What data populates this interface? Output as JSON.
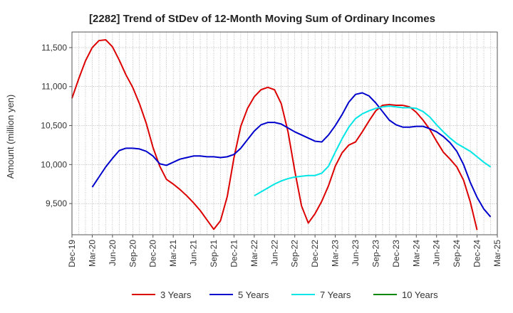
{
  "chart_data": {
    "type": "line",
    "title": "[2282]  Trend of StDev of 12-Month Moving Sum of Ordinary Incomes",
    "xlabel": "",
    "ylabel": "Amount (million yen)",
    "ylim": [
      9100,
      11700
    ],
    "yticks": [
      9500,
      10000,
      10500,
      11000,
      11500
    ],
    "ytick_labels": [
      "9,500",
      "10,000",
      "10,500",
      "11,000",
      "11,500"
    ],
    "x_start": "Dec-19",
    "x_end": "Mar-25",
    "x_ticks": [
      "Dec-19",
      "Mar-20",
      "Jun-20",
      "Sep-20",
      "Dec-20",
      "Mar-21",
      "Jun-21",
      "Sep-21",
      "Dec-21",
      "Mar-22",
      "Jun-22",
      "Sep-22",
      "Dec-22",
      "Mar-23",
      "Jun-23",
      "Sep-23",
      "Dec-23",
      "Mar-24",
      "Jun-24",
      "Sep-24",
      "Dec-24",
      "Mar-25"
    ],
    "grid": true,
    "legend_position": "bottom",
    "series": [
      {
        "name": "3 Years",
        "color": "#dd0000",
        "start": "Dec-19",
        "values": [
          10850,
          11100,
          11330,
          11500,
          11590,
          11600,
          11510,
          11340,
          11150,
          10990,
          10780,
          10530,
          10220,
          9980,
          9810,
          9750,
          9680,
          9600,
          9510,
          9410,
          9290,
          9170,
          9280,
          9590,
          10090,
          10490,
          10720,
          10870,
          10960,
          10990,
          10960,
          10780,
          10420,
          9920,
          9470,
          9250,
          9370,
          9530,
          9730,
          9980,
          10150,
          10250,
          10290,
          10420,
          10560,
          10690,
          10760,
          10770,
          10760,
          10760,
          10740,
          10670,
          10570,
          10450,
          10300,
          10160,
          10070,
          9970,
          9800,
          9520,
          9160
        ]
      },
      {
        "name": "5 Years",
        "color": "#0000cc",
        "start": "Mar-20",
        "values": [
          9710,
          9840,
          9970,
          10080,
          10180,
          10210,
          10210,
          10200,
          10170,
          10110,
          10010,
          9990,
          10030,
          10070,
          10090,
          10110,
          10110,
          10100,
          10100,
          10090,
          10100,
          10130,
          10210,
          10320,
          10430,
          10510,
          10540,
          10540,
          10520,
          10470,
          10420,
          10380,
          10340,
          10300,
          10290,
          10380,
          10500,
          10640,
          10800,
          10900,
          10920,
          10880,
          10790,
          10680,
          10570,
          10510,
          10480,
          10480,
          10490,
          10490,
          10460,
          10420,
          10360,
          10280,
          10170,
          10000,
          9770,
          9580,
          9430,
          9330
        ]
      },
      {
        "name": "7 Years",
        "color": "#00e5e5",
        "start": "Mar-22",
        "values": [
          9600,
          9650,
          9700,
          9750,
          9790,
          9820,
          9840,
          9850,
          9860,
          9860,
          9890,
          9980,
          10160,
          10330,
          10480,
          10590,
          10650,
          10690,
          10720,
          10740,
          10750,
          10740,
          10730,
          10730,
          10720,
          10680,
          10610,
          10510,
          10420,
          10340,
          10270,
          10220,
          10170,
          10100,
          10030,
          9970
        ]
      },
      {
        "name": "10 Years",
        "color": "#008800",
        "start": "Dec-24",
        "values": []
      }
    ]
  }
}
